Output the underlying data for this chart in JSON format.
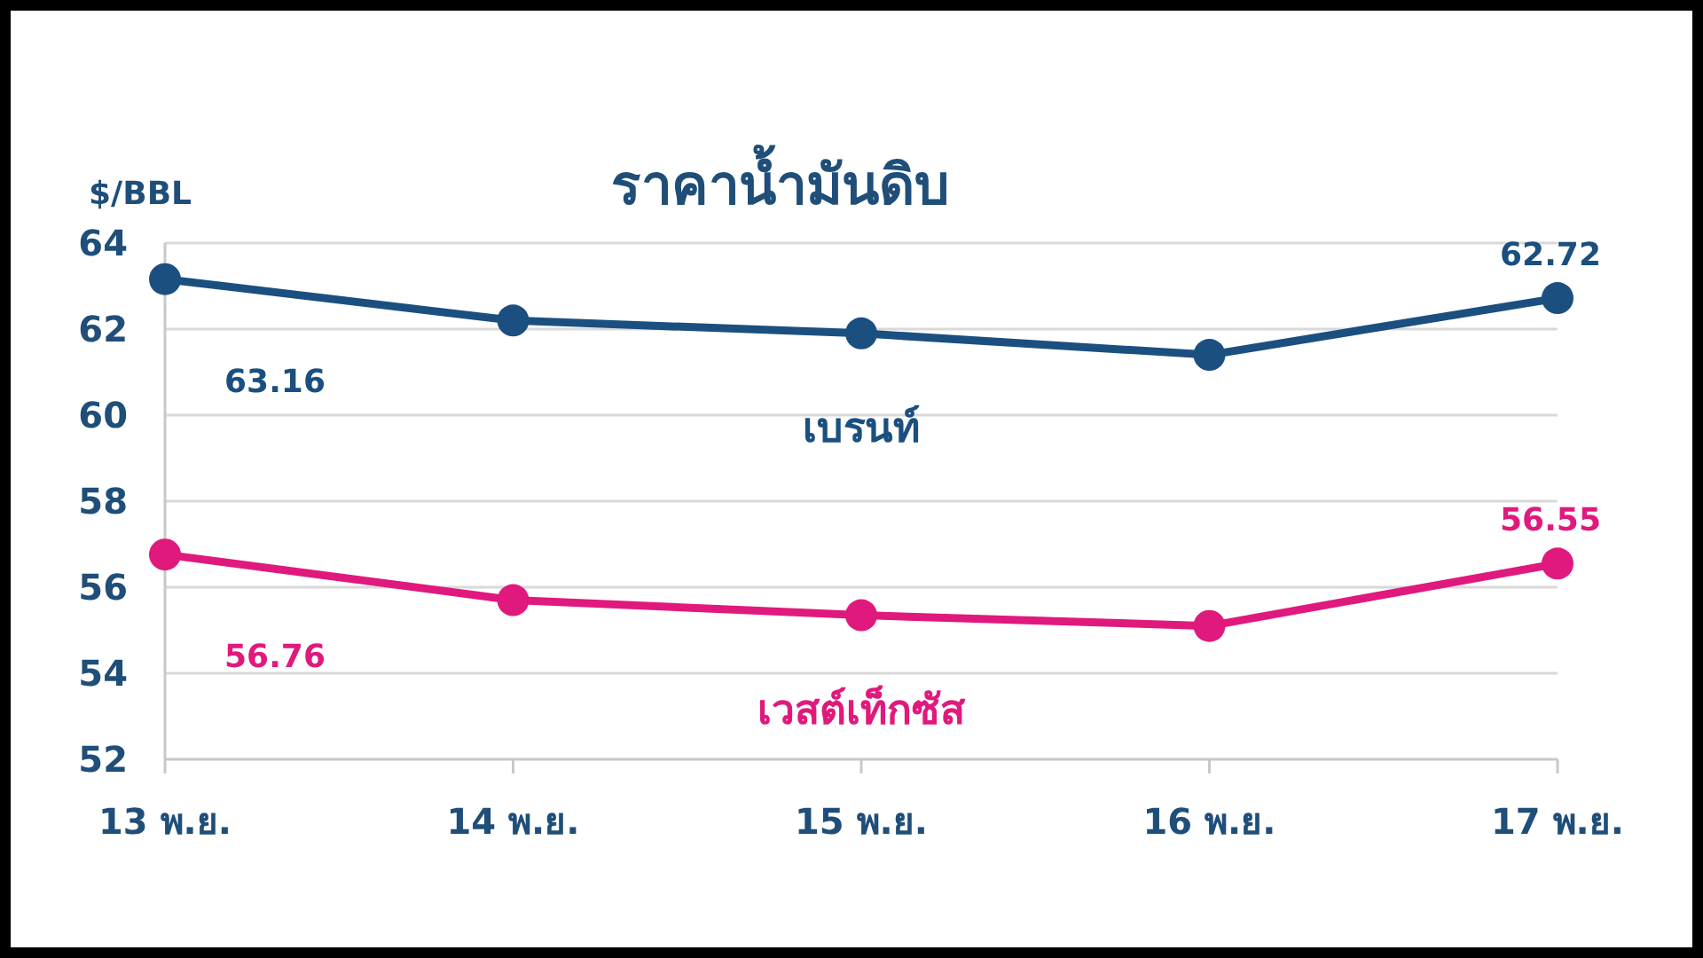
{
  "chart_data": {
    "type": "line",
    "title": "ราคาน้ำมันดิบ",
    "ylabel": "$/BBL",
    "categories": [
      "13 พ.ย.",
      "14 พ.ย.",
      "15 พ.ย.",
      "16 พ.ย.",
      "17 พ.ย."
    ],
    "series": [
      {
        "name": "เบรนท์",
        "color": "#1b4f80",
        "values": [
          63.16,
          62.2,
          61.9,
          61.4,
          62.72
        ],
        "value_labels": [
          "63.16",
          null,
          null,
          null,
          "62.72"
        ]
      },
      {
        "name": "เวสต์เท็กซัส",
        "color": "#e0197d",
        "values": [
          56.76,
          55.7,
          55.35,
          55.1,
          56.55
        ],
        "value_labels": [
          "56.76",
          null,
          null,
          null,
          "56.55"
        ]
      }
    ],
    "ylim": [
      52,
      64
    ],
    "yticks": [
      52,
      54,
      56,
      58,
      60,
      62,
      64
    ],
    "grid": "y",
    "legend": false,
    "marker": "circle",
    "line_style": "solid"
  }
}
